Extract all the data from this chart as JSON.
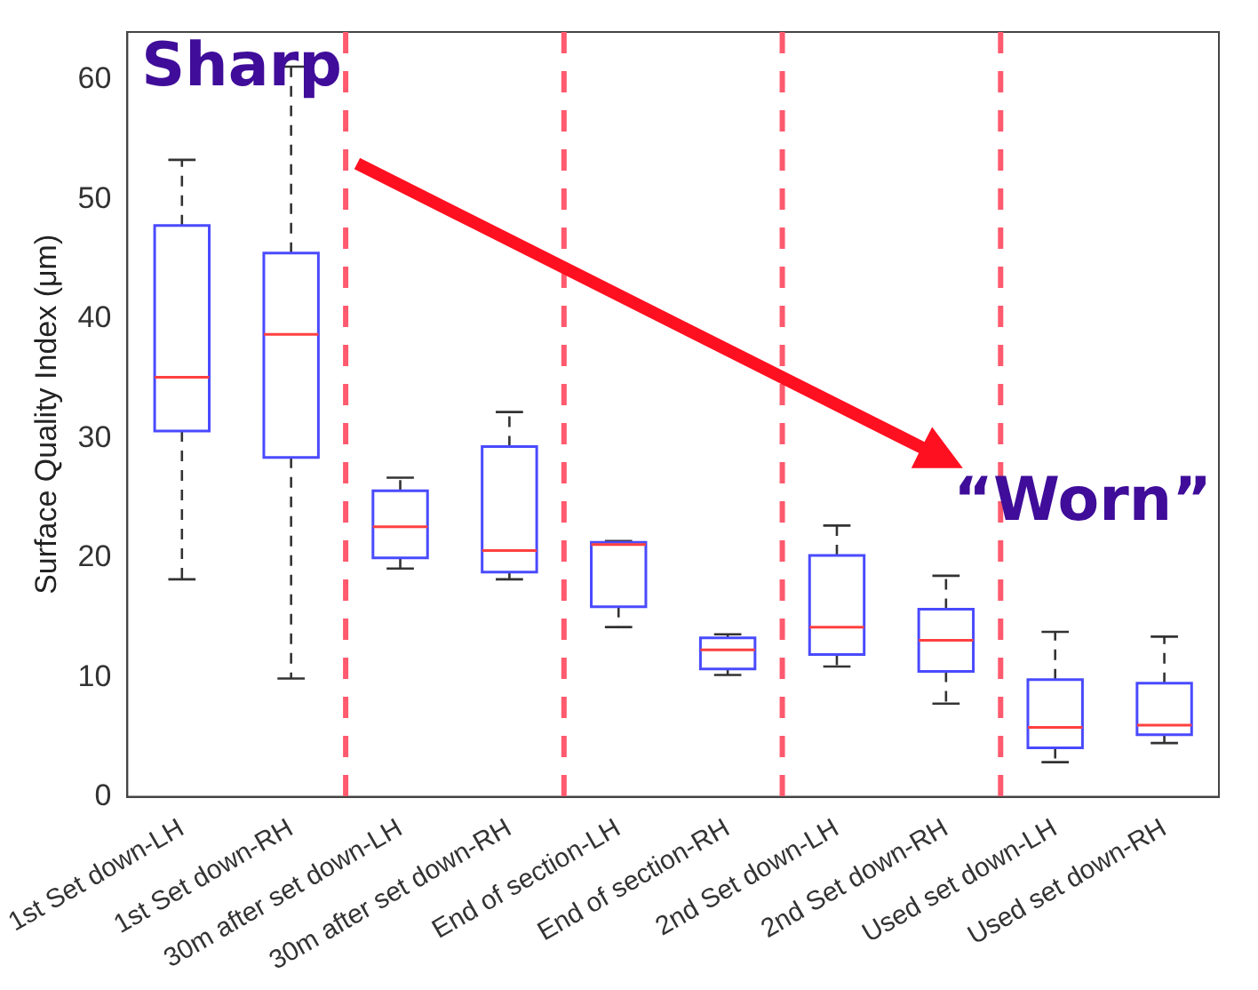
{
  "chart_data": {
    "type": "box",
    "ylabel": "Surface Quality Index (μm)",
    "categories": [
      "1st Set down-LH",
      "1st Set down-RH",
      "30m after set down-LH",
      "30m after set down-RH",
      "End of section-LH",
      "End of section-RH",
      "2nd Set down-LH",
      "2nd Set down-RH",
      "Used set down-LH",
      "Used set down-RH"
    ],
    "series": [
      {
        "color": "#4a4aff",
        "boxes": [
          {
            "low": 18.2,
            "q1": 30.6,
            "median": 35.1,
            "q3": 47.8,
            "high": 53.3
          },
          {
            "low": 9.9,
            "q1": 28.4,
            "median": 38.7,
            "q3": 45.5,
            "high": 61.1
          },
          {
            "low": 19.1,
            "q1": 20.0,
            "median": 22.6,
            "q3": 25.6,
            "high": 26.7
          },
          {
            "low": 18.2,
            "q1": 18.8,
            "median": 20.6,
            "q3": 29.3,
            "high": 32.2
          },
          {
            "low": 14.2,
            "q1": 15.9,
            "median": 21.1,
            "q3": 21.3,
            "high": 21.4
          },
          {
            "low": 10.2,
            "q1": 10.7,
            "median": 12.3,
            "q3": 13.3,
            "high": 13.6
          },
          {
            "low": 10.9,
            "q1": 11.9,
            "median": 14.2,
            "q3": 20.2,
            "high": 22.7
          },
          {
            "low": 7.8,
            "q1": 10.5,
            "median": 13.1,
            "q3": 15.7,
            "high": 18.5
          },
          {
            "low": 2.9,
            "q1": 4.1,
            "median": 5.8,
            "q3": 9.8,
            "high": 13.8
          },
          {
            "low": 4.5,
            "q1": 5.2,
            "median": 6.0,
            "q3": 9.5,
            "high": 13.4
          }
        ]
      }
    ],
    "ylim": [
      0,
      64
    ],
    "yticks": [
      0,
      10,
      20,
      30,
      40,
      50,
      60
    ],
    "annotations": [
      "Sharp",
      "“Worn”"
    ]
  }
}
